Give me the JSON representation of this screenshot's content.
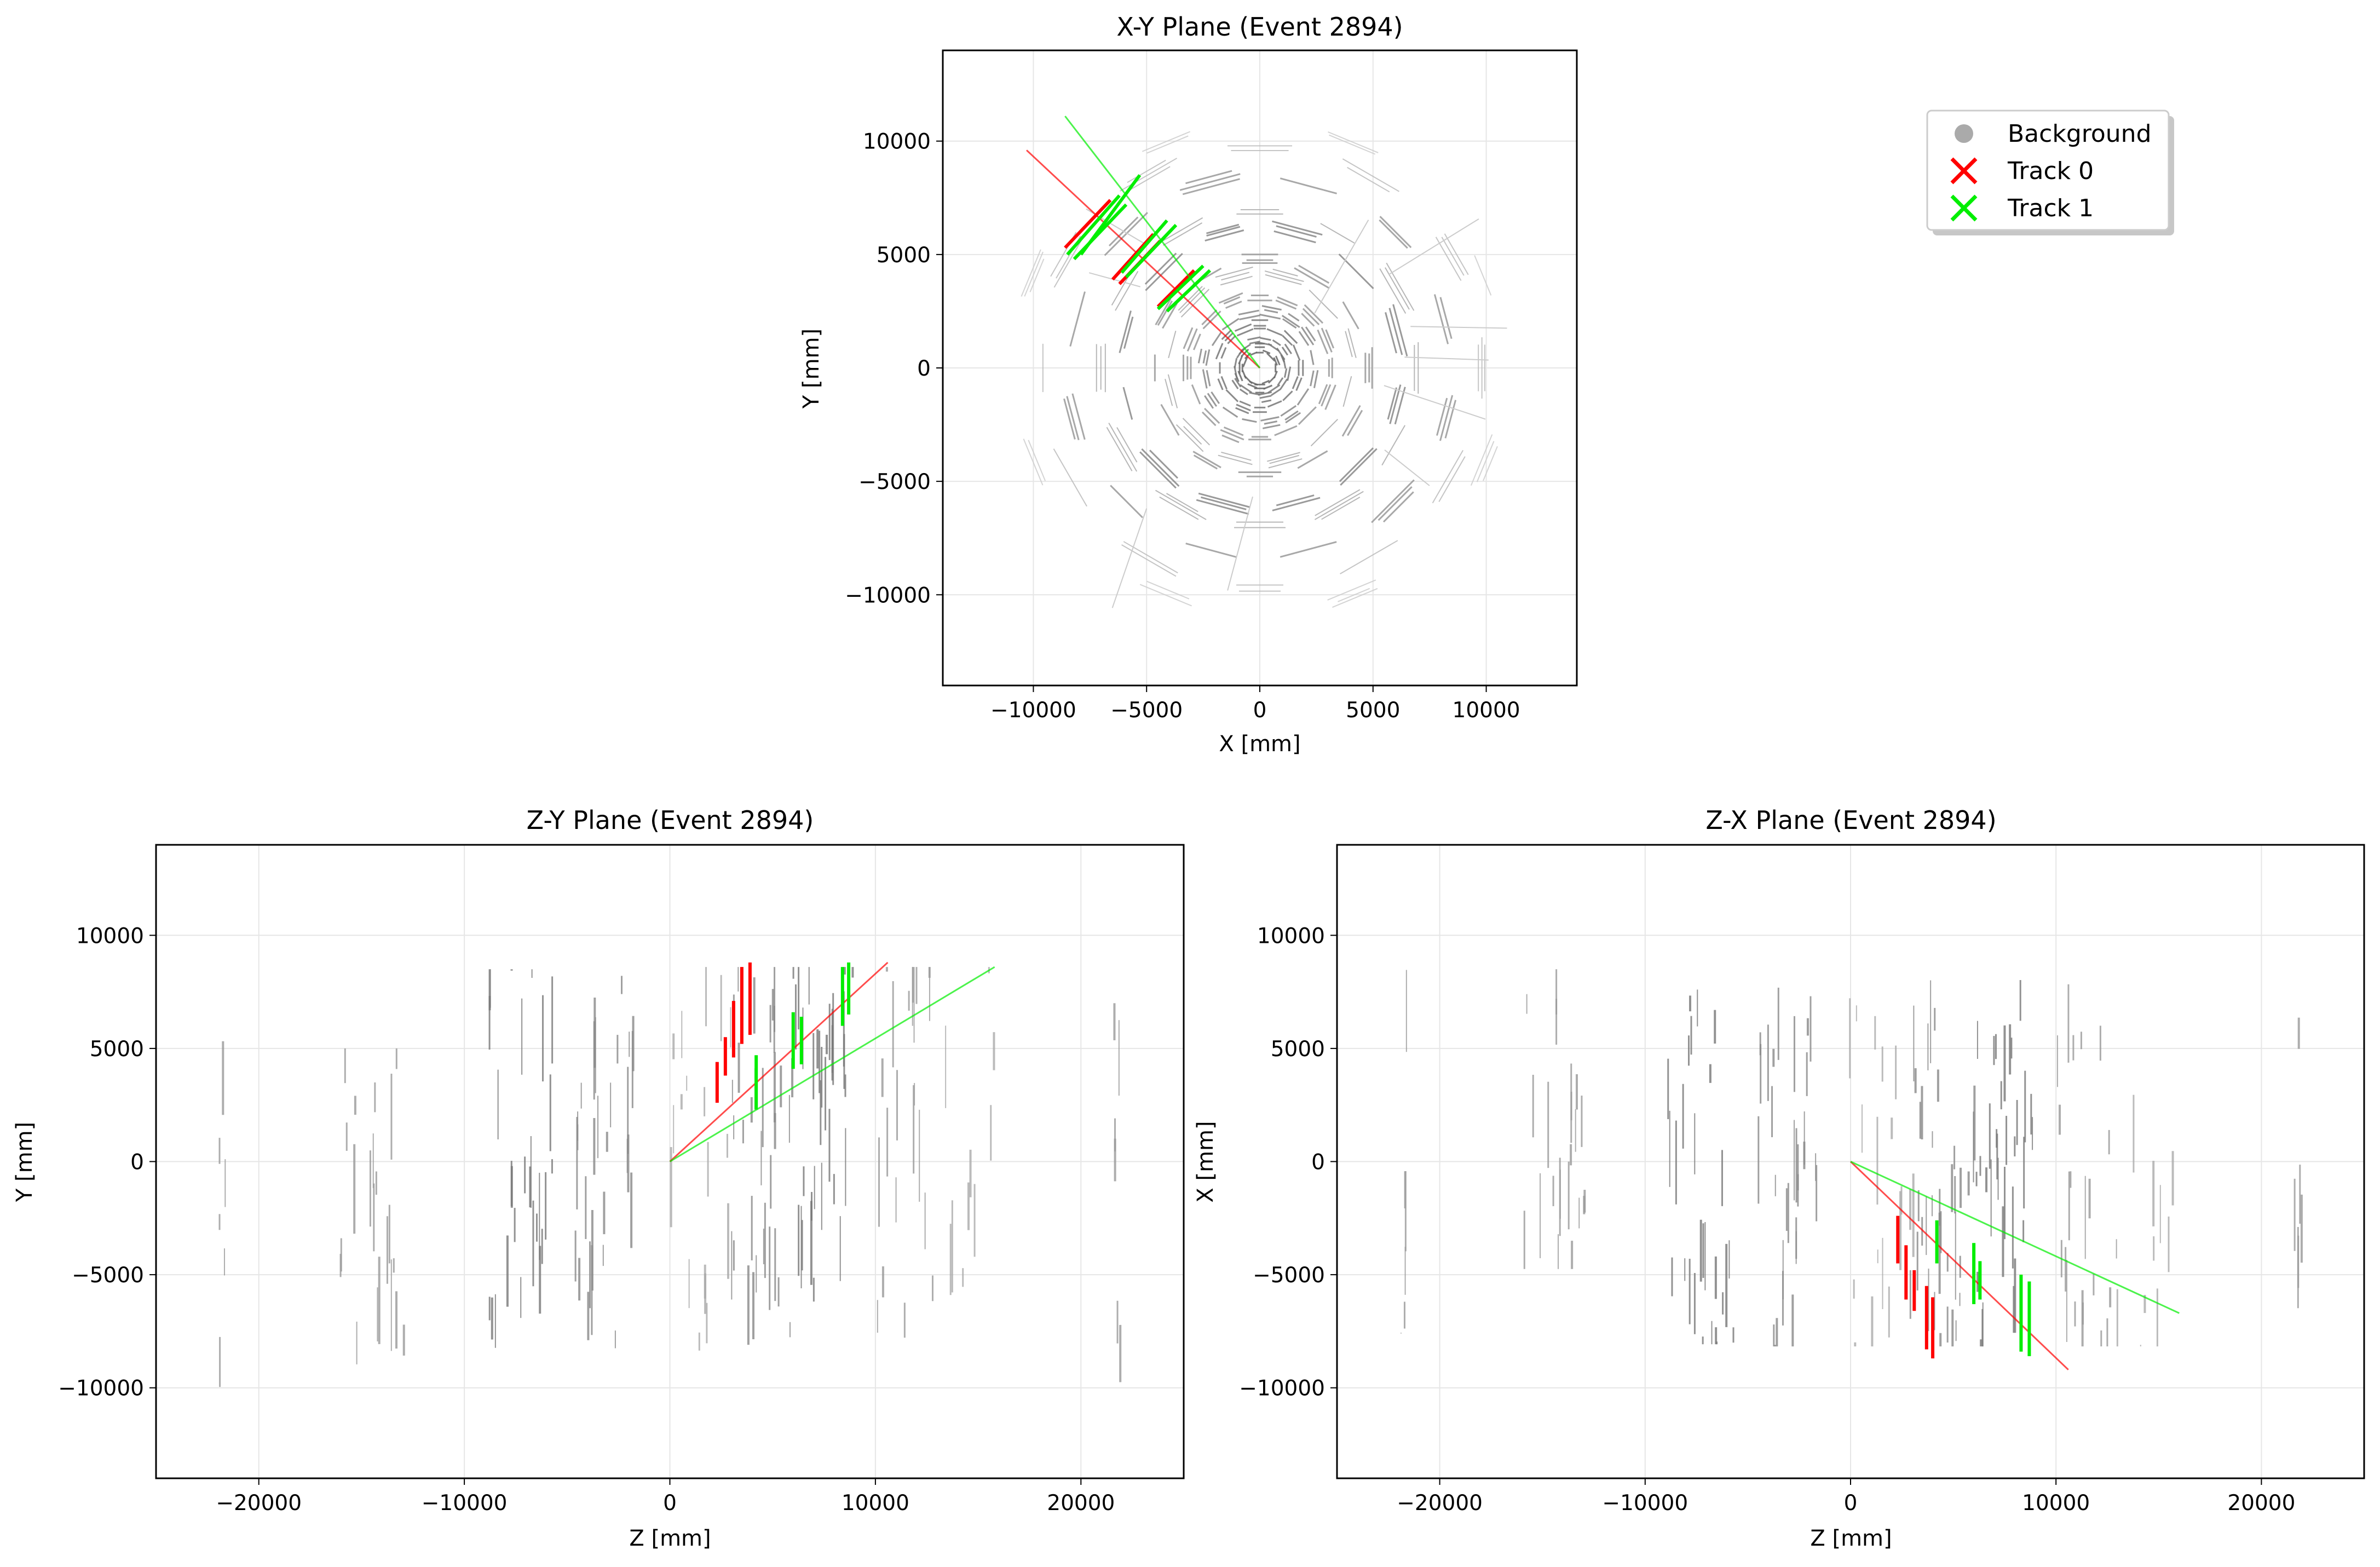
{
  "chart_data": [
    {
      "id": "xy",
      "type": "scatter",
      "title": "X-Y Plane (Event 2894)",
      "xlabel": "X [mm]",
      "ylabel": "Y [mm]",
      "xlim": [
        -14000,
        14000
      ],
      "ylim": [
        -14000,
        14000
      ],
      "xticks": [
        -10000,
        -5000,
        0,
        5000,
        10000
      ],
      "yticks": [
        -10000,
        -5000,
        0,
        5000,
        10000
      ],
      "xtick_labels": [
        "−10000",
        "−5000",
        "0",
        "5000",
        "10000"
      ],
      "ytick_labels": [
        "−10000",
        "−5000",
        "0",
        "5000",
        "10000"
      ],
      "grid": true,
      "tracks": [
        {
          "name": "Track 0",
          "color": "#ff0000",
          "line": [
            [
              0,
              0
            ],
            [
              -10300,
              9600
            ]
          ],
          "hits": [
            [
              -8600,
              5300,
              -6600,
              7400
            ],
            [
              -6500,
              3900,
              -4700,
              5900
            ],
            [
              -6200,
              3700,
              -4400,
              5600
            ],
            [
              -4500,
              2700,
              -2900,
              4300
            ]
          ]
        },
        {
          "name": "Track 1",
          "color": "#00ee00",
          "line": [
            [
              0,
              0
            ],
            [
              -8600,
              11100
            ]
          ],
          "hits": [
            [
              -8500,
              5000,
              -6200,
              7600
            ],
            [
              -8200,
              4800,
              -5900,
              7200
            ],
            [
              -7900,
              5000,
              -5300,
              8500
            ],
            [
              -6100,
              4200,
              -4100,
              6500
            ],
            [
              -5900,
              4000,
              -3700,
              6300
            ],
            [
              -4500,
              2600,
              -2500,
              4500
            ],
            [
              -4100,
              2500,
              -2200,
              4300
            ]
          ]
        }
      ]
    },
    {
      "id": "zy",
      "type": "scatter",
      "title": "Z-Y Plane (Event 2894)",
      "xlabel": "Z [mm]",
      "ylabel": "Y [mm]",
      "xlim": [
        -25000,
        25000
      ],
      "ylim": [
        -14000,
        14000
      ],
      "xticks": [
        -20000,
        -10000,
        0,
        10000,
        20000
      ],
      "yticks": [
        -10000,
        -5000,
        0,
        5000,
        10000
      ],
      "xtick_labels": [
        "−20000",
        "−10000",
        "0",
        "10000",
        "20000"
      ],
      "ytick_labels": [
        "−10000",
        "−5000",
        "0",
        "5000",
        "10000"
      ],
      "grid": true,
      "tracks": [
        {
          "name": "Track 0",
          "color": "#ff0000",
          "line": [
            [
              0,
              0
            ],
            [
              10600,
              8800
            ]
          ],
          "hits": [
            [
              2300,
              2600,
              2300,
              4400
            ],
            [
              2700,
              3800,
              2700,
              5500
            ],
            [
              3100,
              4600,
              3100,
              7100
            ],
            [
              3500,
              5200,
              3500,
              8600
            ],
            [
              3900,
              5600,
              3900,
              8800
            ]
          ]
        },
        {
          "name": "Track 1",
          "color": "#00ee00",
          "line": [
            [
              0,
              0
            ],
            [
              15800,
              8600
            ]
          ],
          "hits": [
            [
              4200,
              2300,
              4200,
              4700
            ],
            [
              6000,
              4100,
              6000,
              6600
            ],
            [
              6400,
              4300,
              6400,
              6400
            ],
            [
              8400,
              6000,
              8400,
              8600
            ],
            [
              8700,
              6500,
              8700,
              8800
            ]
          ]
        }
      ]
    },
    {
      "id": "zx",
      "type": "scatter",
      "title": "Z-X Plane (Event 2894)",
      "xlabel": "Z [mm]",
      "ylabel": "X [mm]",
      "xlim": [
        -25000,
        25000
      ],
      "ylim": [
        -14000,
        14000
      ],
      "xticks": [
        -20000,
        -10000,
        0,
        10000,
        20000
      ],
      "yticks": [
        -10000,
        -5000,
        0,
        5000,
        10000
      ],
      "xtick_labels": [
        "−20000",
        "−10000",
        "0",
        "10000",
        "20000"
      ],
      "ytick_labels": [
        "−10000",
        "−5000",
        "0",
        "5000",
        "10000"
      ],
      "grid": true,
      "tracks": [
        {
          "name": "Track 0",
          "color": "#ff0000",
          "line": [
            [
              0,
              0
            ],
            [
              10600,
              -9200
            ]
          ],
          "hits": [
            [
              2300,
              -2400,
              2300,
              -4500
            ],
            [
              2700,
              -3700,
              2700,
              -6100
            ],
            [
              3100,
              -4800,
              3100,
              -6600
            ],
            [
              3700,
              -5500,
              3700,
              -8300
            ],
            [
              4000,
              -6000,
              4000,
              -8700
            ]
          ]
        },
        {
          "name": "Track 1",
          "color": "#00ee00",
          "line": [
            [
              0,
              0
            ],
            [
              16000,
              -6700
            ]
          ],
          "hits": [
            [
              4200,
              -2600,
              4200,
              -4500
            ],
            [
              6000,
              -3600,
              6000,
              -6300
            ],
            [
              6300,
              -4400,
              6300,
              -6100
            ],
            [
              8300,
              -5000,
              8300,
              -8400
            ],
            [
              8700,
              -5300,
              8700,
              -8600
            ]
          ]
        }
      ]
    }
  ],
  "legend": {
    "placement": "upper-right-of-figure",
    "entries": [
      {
        "label": "Background",
        "marker": "circle",
        "color": "#aaaaaa"
      },
      {
        "label": "Track 0",
        "marker": "x",
        "color": "#ff0000"
      },
      {
        "label": "Track 1",
        "marker": "x",
        "color": "#00ee00"
      }
    ]
  }
}
